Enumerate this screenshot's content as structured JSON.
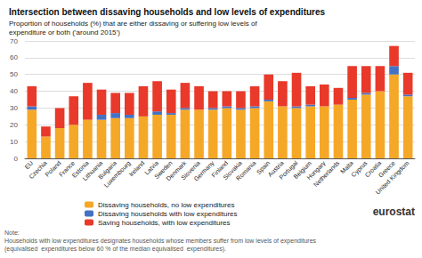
{
  "chart_data": {
    "type": "bar",
    "stacked": true,
    "title": "Intersection between dissaving households and low levels of expenditures",
    "subtitle": "Proportion of households (%) that are either dissaving or suffering low levels of\nexpenditure or both (‘around 2015’)",
    "categories": [
      "EU",
      "Czechia",
      "Poland",
      "France",
      "Estonia",
      "Lithuania",
      "Bulgaria",
      "Luxembourg",
      "Ireland",
      "Latvia",
      "Sweden",
      "Denmark",
      "Slovenia",
      "Germany",
      "Finland",
      "Slovakia",
      "Romania",
      "Spain",
      "Austria",
      "Portugal",
      "Belgium",
      "Hungary",
      "Netherlands",
      "Malta",
      "Cyprus",
      "Croatia",
      "Greece",
      "United Kingdom"
    ],
    "series": [
      {
        "name": "Dissaving households, no low expenditures",
        "color": "#F5A827",
        "values": [
          29,
          13,
          18,
          20,
          23,
          23,
          24,
          24,
          25,
          26,
          26,
          29,
          29,
          29,
          30,
          29,
          30,
          34,
          31,
          30,
          31,
          31,
          32,
          35,
          38,
          40,
          50,
          37
        ]
      },
      {
        "name": "Dissaving households with low expenditures",
        "color": "#4472C4",
        "values": [
          2,
          0,
          0,
          0,
          0,
          3,
          3,
          2,
          0,
          2,
          1,
          1,
          0,
          1,
          1,
          1,
          1,
          1,
          0,
          1,
          1,
          0,
          0,
          1,
          1,
          0,
          5,
          1
        ]
      },
      {
        "name": "Saving households, with low expenditures",
        "color": "#E8392A",
        "values": [
          12,
          6,
          12,
          17,
          22,
          15,
          12,
          13,
          18,
          18,
          14,
          15,
          14,
          10,
          9,
          10,
          12,
          15,
          15,
          20,
          11,
          13,
          10,
          19,
          16,
          15,
          12,
          13
        ]
      }
    ],
    "ylim": [
      0,
      70
    ],
    "yticks": [
      0,
      10,
      20,
      30,
      40,
      50,
      60,
      70
    ],
    "grid": true,
    "legend": "bottom",
    "annotations": [
      "Note:\nHouseholds with low expenditures designates households whose members suffer from low levels of expenditures\n(equivalised  expenditures below 60 % of the median equivalised  expenditures).",
      "eurostat"
    ]
  }
}
